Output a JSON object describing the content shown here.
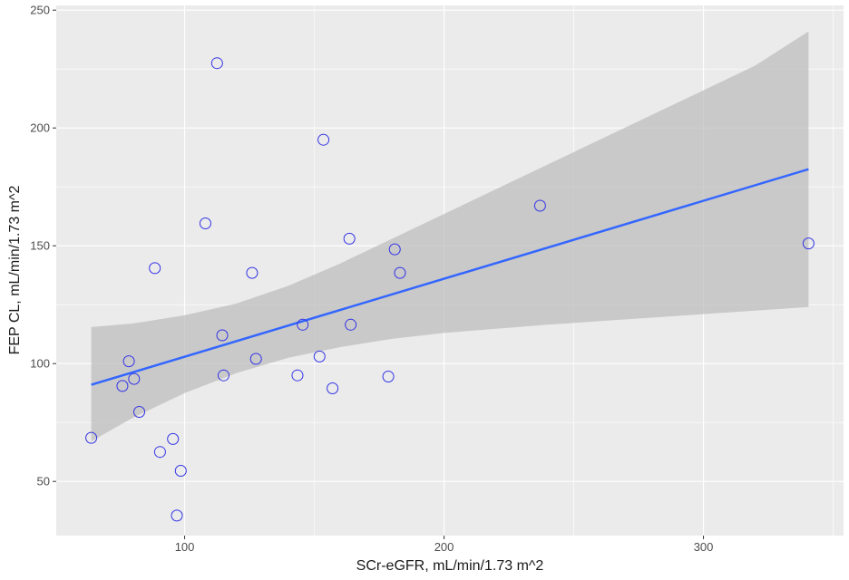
{
  "chart_data": {
    "type": "scatter",
    "title": "",
    "xlabel": "SCr-eGFR, mL/min/1.73 m^2",
    "ylabel": "FEP CL, mL/min/1.73 m^2",
    "xlim": [
      50.5,
      354
    ],
    "ylim": [
      27,
      252
    ],
    "x_ticks": [
      100,
      200,
      300
    ],
    "x_minor": [
      50,
      150,
      250,
      350
    ],
    "y_ticks": [
      50,
      100,
      150,
      200,
      250
    ],
    "y_minor": [
      75,
      125,
      175,
      225
    ],
    "grid": true,
    "points": [
      {
        "x": 64,
        "y": 68.5
      },
      {
        "x": 76,
        "y": 90.5
      },
      {
        "x": 78.5,
        "y": 101
      },
      {
        "x": 80.5,
        "y": 93.5
      },
      {
        "x": 82.5,
        "y": 79.5
      },
      {
        "x": 88.5,
        "y": 140.5
      },
      {
        "x": 90.5,
        "y": 62.5
      },
      {
        "x": 95.5,
        "y": 68
      },
      {
        "x": 97,
        "y": 35.5
      },
      {
        "x": 98.5,
        "y": 54.5
      },
      {
        "x": 108,
        "y": 159.5
      },
      {
        "x": 112.5,
        "y": 227.5
      },
      {
        "x": 114.5,
        "y": 112
      },
      {
        "x": 115,
        "y": 95
      },
      {
        "x": 126,
        "y": 138.5
      },
      {
        "x": 127.5,
        "y": 102
      },
      {
        "x": 143.5,
        "y": 95
      },
      {
        "x": 145.5,
        "y": 116.5
      },
      {
        "x": 152,
        "y": 103
      },
      {
        "x": 153.5,
        "y": 195
      },
      {
        "x": 157,
        "y": 89.5
      },
      {
        "x": 163.5,
        "y": 153
      },
      {
        "x": 164,
        "y": 116.5
      },
      {
        "x": 178.5,
        "y": 94.5
      },
      {
        "x": 181,
        "y": 148.5
      },
      {
        "x": 183,
        "y": 138.5
      },
      {
        "x": 237,
        "y": 167
      },
      {
        "x": 340.5,
        "y": 151
      }
    ],
    "trend_line": {
      "x": [
        64,
        340.5
      ],
      "y": [
        91,
        182.5
      ]
    },
    "confidence_band": {
      "x": [
        64,
        80,
        100,
        120,
        140,
        160,
        180,
        200,
        240,
        280,
        320,
        340.5
      ],
      "upper": [
        115.5,
        117,
        120.5,
        125.5,
        133,
        142.5,
        153,
        163.5,
        184.5,
        205.5,
        226.5,
        241
      ],
      "lower": [
        67,
        77,
        87.5,
        96,
        102.5,
        107,
        110.5,
        113,
        116.5,
        119.5,
        122.5,
        124
      ]
    },
    "colors": {
      "panel": "#ebebeb",
      "grid": "#ffffff",
      "points": "#3333e6",
      "line": "#3366ff",
      "band": "#bdbdbd"
    }
  }
}
